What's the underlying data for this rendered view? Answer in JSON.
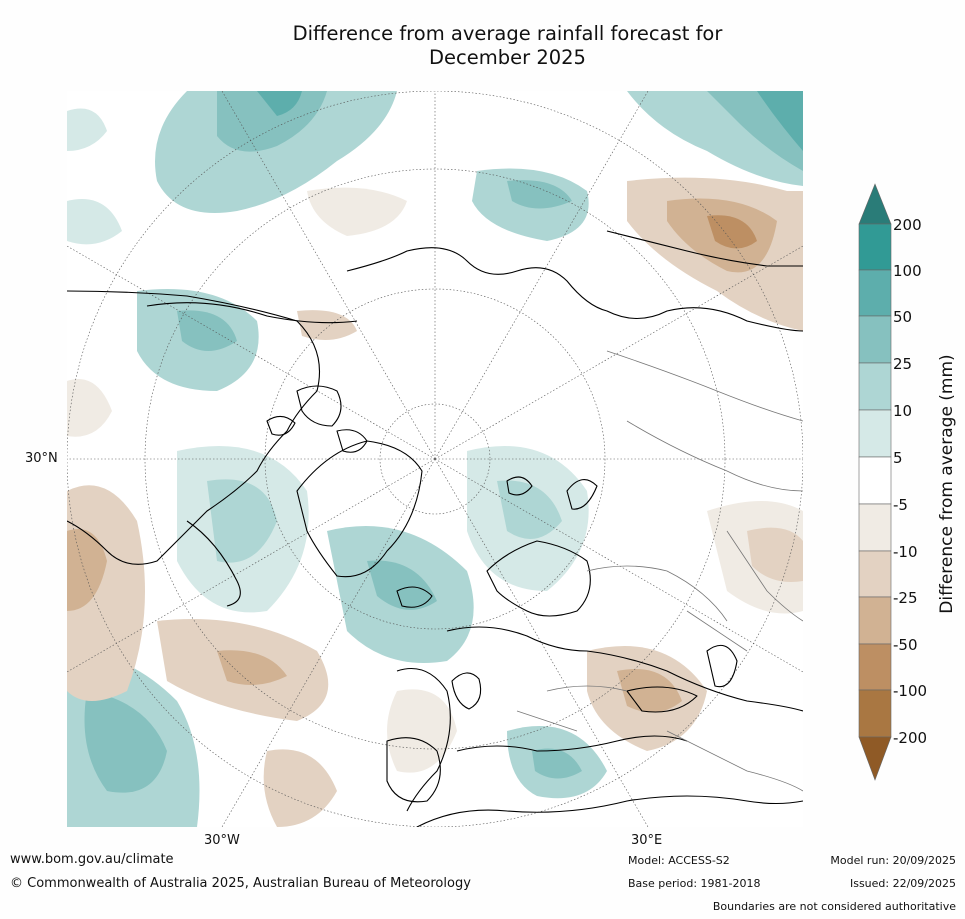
{
  "title": {
    "line1": "Difference from average rainfall forecast for",
    "line2": "December 2025"
  },
  "map": {
    "projection": "north-polar-stereographic",
    "lat_label": "30°N",
    "lon_labels": [
      "30°W",
      "30°E"
    ]
  },
  "colorbar": {
    "label": "Difference from average (mm)",
    "ticks": [
      "200",
      "100",
      "50",
      "25",
      "10",
      "5",
      "-5",
      "-10",
      "-25",
      "-50",
      "-100",
      "-200"
    ],
    "colors": {
      "gt200": "#2a7c78",
      "100_200": "#319a95",
      "50_100": "#5daeac",
      "25_50": "#86c1bf",
      "10_25": "#aed6d4",
      "5_10": "#d5e9e7",
      "neutral": "#ffffff",
      "m10_m5": "#f0ebe4",
      "m25_m10": "#e3d2c2",
      "m50_m25": "#d1b293",
      "m100_m50": "#bd8f63",
      "m200_m100": "#a97742",
      "lt_m200": "#8f5a26"
    }
  },
  "footer": {
    "website": "www.bom.gov.au/climate",
    "copyright": "© Commonwealth of Australia 2025, Australian Bureau of Meteorology",
    "model": "Model: ACCESS-S2",
    "base_period": "Base period: 1981-2018",
    "model_run": "Model run: 20/09/2025",
    "issued": "Issued: 22/09/2025",
    "disclaimer": "Boundaries are not considered authoritative"
  }
}
